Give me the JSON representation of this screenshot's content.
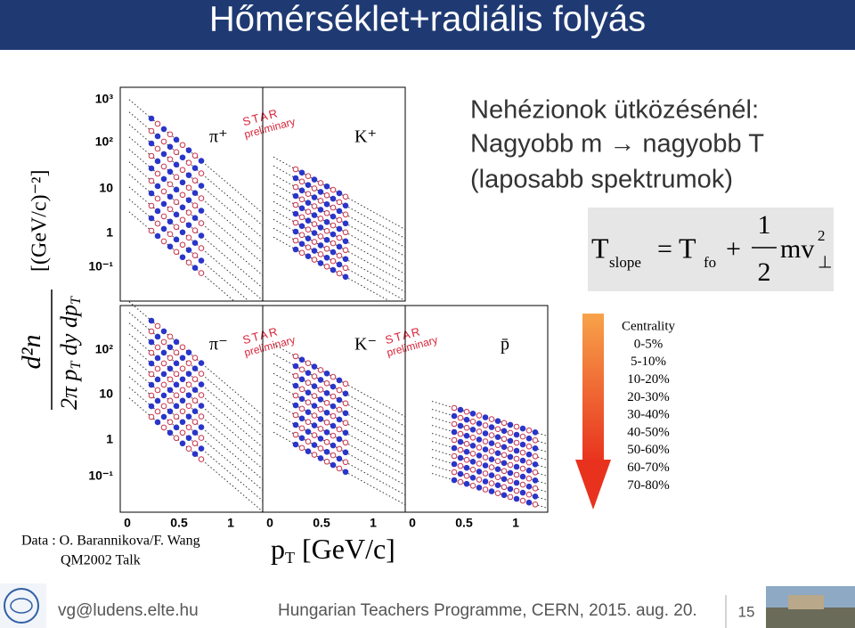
{
  "header": {
    "title": "Hőmérséklet+radiális folyás"
  },
  "figure": {
    "y_axis_label": {
      "numerator": "d²n",
      "denominator": "2π p",
      "denominator_sub": "T",
      "denominator_rest": " dy dp",
      "denominator_sub2": "T",
      "unit": "[(GeV/c)⁻²]"
    },
    "top_yticks": [
      "10³",
      "10²",
      "10",
      "1",
      "10⁻¹"
    ],
    "bottom_yticks": [
      "10²",
      "10",
      "1",
      "10⁻¹"
    ],
    "xticks": [
      "0",
      "0.5",
      "1"
    ],
    "x_axis_label": {
      "main": "p",
      "sub": "T",
      "rest": " [GeV/c]"
    },
    "panels": [
      {
        "label": "π⁺",
        "watermark": [
          "STAR",
          "preliminary"
        ]
      },
      {
        "label": "K⁺"
      },
      {
        "label": "π⁻",
        "watermark": [
          "STAR",
          "preliminary"
        ]
      },
      {
        "label": "K⁻",
        "watermark": [
          "STAR",
          "preliminary"
        ]
      },
      {
        "label": "p̄"
      }
    ],
    "credit": [
      "Data : O. Barannikova/F. Wang",
      "QM2002 Talk"
    ]
  },
  "text": {
    "lines": [
      "Nehézionok ütközésénél:",
      "Nagyobb m → nagyobb T",
      "(laposabb spektrumok)"
    ]
  },
  "formula": {
    "t1": "T",
    "t1_sub": "slope",
    "eq": "=",
    "t2": "T",
    "t2_sub": "fo",
    "plus": "+",
    "num": "1",
    "den": "2",
    "mv": "mv",
    "sup": "2",
    "perp": "⊥"
  },
  "legend": {
    "title": "Centrality",
    "items": [
      "0-5%",
      "5-10%",
      "10-20%",
      "20-30%",
      "30-40%",
      "40-50%",
      "50-60%",
      "60-70%",
      "70-80%"
    ]
  },
  "footer": {
    "email": "vg@ludens.elte.hu",
    "event": "Hungarian Teachers Programme, CERN, 2015. aug. 20.",
    "page": "15"
  }
}
